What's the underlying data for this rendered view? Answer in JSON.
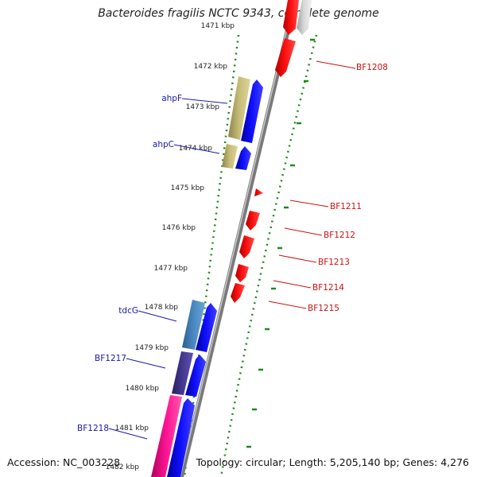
{
  "title": "Bacteroides fragilis NCTC 9343, complete genome",
  "footer": {
    "accession": "Accession: NC_003228",
    "topology": "Topology: circular; Length: 5,205,140 bp; Genes: 4,276"
  },
  "ticks": [
    "1471 kbp",
    "1472 kbp",
    "1473 kbp",
    "1474 kbp",
    "1475 kbp",
    "1476 kbp",
    "1477 kbp",
    "1478 kbp",
    "1479 kbp",
    "1480 kbp",
    "1481 kbp",
    "1482 kbp"
  ],
  "left_labels": [
    "ahpF",
    "ahpC",
    "tdcG",
    "BF1217",
    "BF1218"
  ],
  "right_labels": [
    "BF1208",
    "BF1211",
    "BF1212",
    "BF1213",
    "BF1214",
    "BF1215"
  ],
  "colors": {
    "backbone": "#8c8c8c",
    "dotted_track": "#1e8a1e",
    "forward_gene": "#1010ee",
    "reverse_gene": "#ee1111",
    "left_label": "#1a1aa8",
    "right_label": "#cc1111"
  }
}
